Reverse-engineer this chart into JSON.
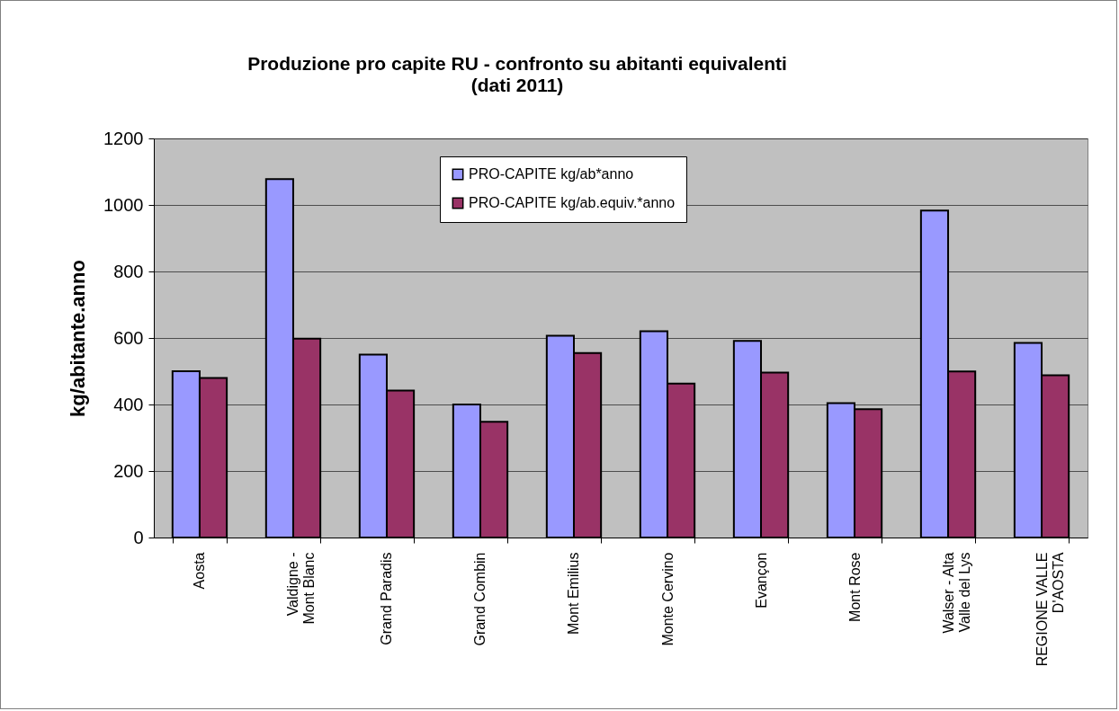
{
  "chart_data": {
    "type": "bar",
    "title": "Produzione pro capite RU - confronto su abitanti equivalenti\n(dati 2011)",
    "ylabel": "kg/abitante.anno",
    "categories": [
      "Aosta",
      "Valdigne - Mont Blanc",
      "Grand Paradis",
      "Grand Combin",
      "Mont Emilius",
      "Monte Cervino",
      "Evançon",
      "Mont Rose",
      "Walser - Alta Valle del Lys",
      "REGIONE VALLE D'AOSTA"
    ],
    "series": [
      {
        "name": "PRO-CAPITE kg/ab*anno",
        "color": "#9999ff",
        "values": [
          500,
          1078,
          550,
          400,
          607,
          620,
          591,
          404,
          983,
          585
        ]
      },
      {
        "name": "PRO-CAPITE kg/ab.equiv.*anno",
        "color": "#993366",
        "values": [
          480,
          598,
          442,
          348,
          555,
          463,
          496,
          386,
          499,
          488
        ]
      }
    ],
    "ylim": [
      0,
      1200
    ],
    "yticks": [
      0,
      200,
      400,
      600,
      800,
      1000,
      1200
    ],
    "grid": "y",
    "legend": "top"
  }
}
